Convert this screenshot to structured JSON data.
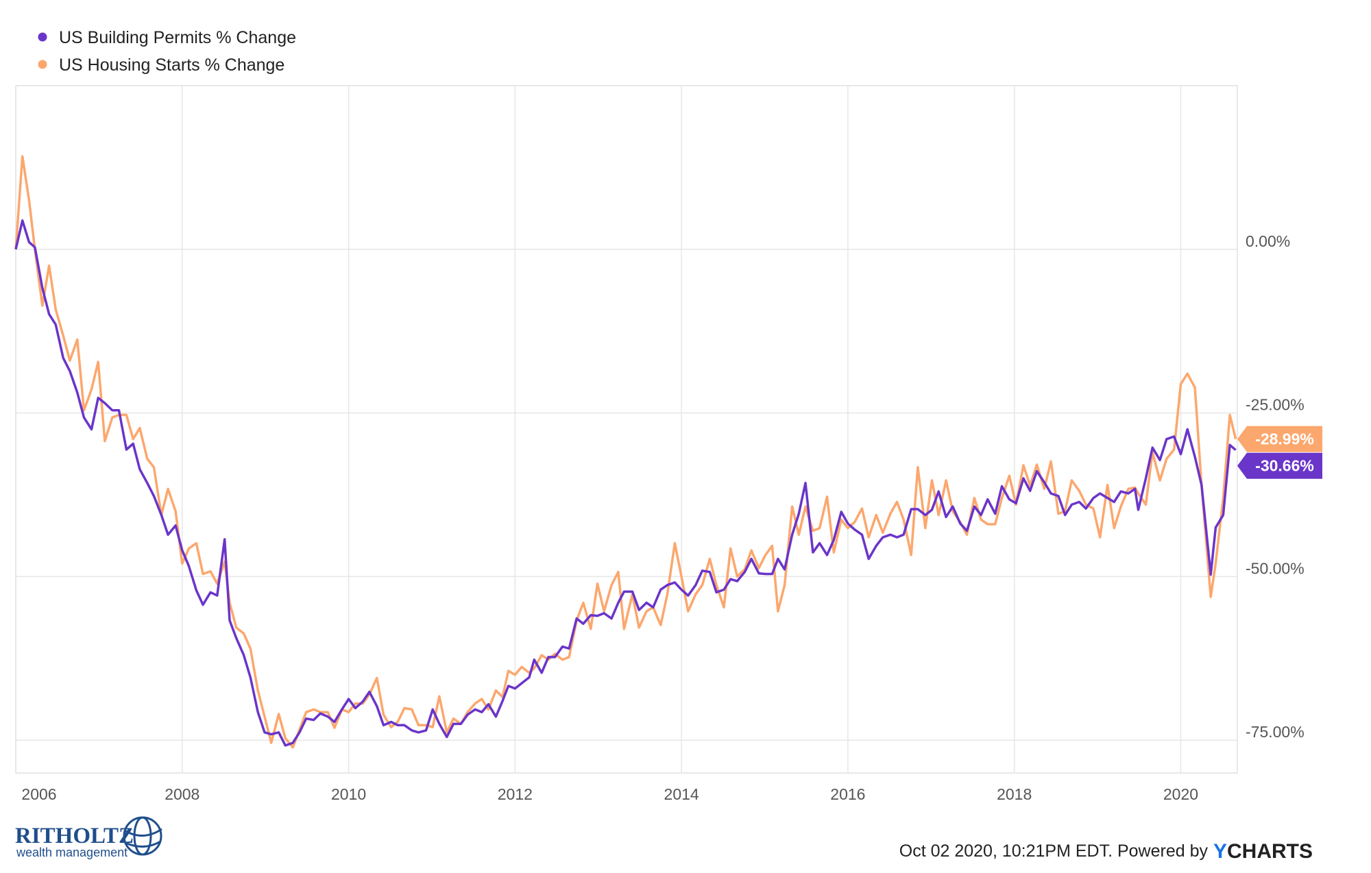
{
  "chart_data": {
    "type": "line",
    "x": [
      2006.0,
      2006.08,
      2006.16,
      2006.23,
      2006.32,
      2006.4,
      2006.48,
      2006.57,
      2006.65,
      2006.74,
      2006.82,
      2006.91,
      2006.99,
      2007.07,
      2007.16,
      2007.24,
      2007.33,
      2007.41,
      2007.49,
      2007.58,
      2007.66,
      2007.75,
      2007.83,
      2007.92,
      2008.0,
      2008.08,
      2008.17,
      2008.25,
      2008.34,
      2008.42,
      2008.51,
      2008.57,
      2008.65,
      2008.74,
      2008.82,
      2008.91,
      2008.99,
      2009.07,
      2009.16,
      2009.24,
      2009.33,
      2009.41,
      2009.49,
      2009.58,
      2009.66,
      2009.75,
      2009.83,
      2009.92,
      2010.0,
      2010.08,
      2010.17,
      2010.25,
      2010.34,
      2010.42,
      2010.51,
      2010.59,
      2010.67,
      2010.76,
      2010.84,
      2010.93,
      2011.01,
      2011.09,
      2011.18,
      2011.26,
      2011.35,
      2011.43,
      2011.52,
      2011.6,
      2011.68,
      2011.77,
      2011.85,
      2011.92,
      2012.0,
      2012.08,
      2012.17,
      2012.23,
      2012.32,
      2012.4,
      2012.48,
      2012.57,
      2012.65,
      2012.74,
      2012.82,
      2012.91,
      2012.99,
      2013.07,
      2013.16,
      2013.24,
      2013.31,
      2013.41,
      2013.49,
      2013.58,
      2013.66,
      2013.75,
      2013.83,
      2013.92,
      2014.0,
      2014.08,
      2014.17,
      2014.25,
      2014.34,
      2014.42,
      2014.51,
      2014.59,
      2014.67,
      2014.76,
      2014.84,
      2014.93,
      2015.01,
      2015.09,
      2015.16,
      2015.24,
      2015.33,
      2015.41,
      2015.49,
      2015.58,
      2015.66,
      2015.75,
      2015.83,
      2015.92,
      2016.0,
      2016.08,
      2016.17,
      2016.25,
      2016.34,
      2016.42,
      2016.51,
      2016.59,
      2016.67,
      2016.76,
      2016.84,
      2016.93,
      2017.01,
      2017.09,
      2017.18,
      2017.26,
      2017.35,
      2017.43,
      2017.52,
      2017.6,
      2017.68,
      2017.77,
      2017.85,
      2017.94,
      2018.02,
      2018.11,
      2018.19,
      2018.27,
      2018.36,
      2018.44,
      2018.53,
      2018.61,
      2018.69,
      2018.78,
      2018.86,
      2018.95,
      2019.03,
      2019.12,
      2019.2,
      2019.28,
      2019.37,
      2019.45,
      2019.49,
      2019.58,
      2019.66,
      2019.75,
      2019.83,
      2019.92,
      2020.0,
      2020.08,
      2020.17,
      2020.25,
      2020.36,
      2020.42,
      2020.51,
      2020.59,
      2020.66
    ],
    "series": [
      {
        "name": "US Building Permits % Change",
        "color": "#6a35c9",
        "end_label": "-30.66%",
        "values": [
          0,
          4.4,
          1.1,
          0.3,
          -5.9,
          -9.9,
          -11.5,
          -16.6,
          -18.6,
          -21.9,
          -25.7,
          -27.5,
          -22.7,
          -23.5,
          -24.6,
          -24.6,
          -30.6,
          -29.7,
          -33.6,
          -35.7,
          -37.7,
          -40.6,
          -43.6,
          -42.2,
          -46.0,
          -48.4,
          -52.1,
          -54.3,
          -52.4,
          -52.9,
          -44.3,
          -56.7,
          -59.4,
          -62.0,
          -65.4,
          -70.7,
          -73.8,
          -74.1,
          -73.8,
          -75.8,
          -75.4,
          -73.8,
          -71.7,
          -71.9,
          -70.9,
          -71.4,
          -72.2,
          -70.3,
          -68.7,
          -70.1,
          -69.1,
          -67.6,
          -69.8,
          -72.7,
          -72.2,
          -72.7,
          -72.7,
          -73.5,
          -73.8,
          -73.5,
          -70.3,
          -72.5,
          -74.5,
          -72.5,
          -72.5,
          -71.1,
          -70.3,
          -70.7,
          -69.5,
          -71.4,
          -69.0,
          -66.7,
          -67.1,
          -66.3,
          -65.4,
          -62.7,
          -64.7,
          -62.3,
          -62.3,
          -60.7,
          -61.0,
          -56.4,
          -57.2,
          -55.9,
          -56.0,
          -55.6,
          -56.4,
          -54.0,
          -52.3,
          -52.3,
          -55.1,
          -54.0,
          -54.7,
          -52.0,
          -51.3,
          -50.9,
          -52.0,
          -52.9,
          -51.3,
          -49.1,
          -49.3,
          -52.4,
          -52.0,
          -50.4,
          -50.7,
          -49.3,
          -47.3,
          -49.5,
          -49.6,
          -49.6,
          -47.3,
          -48.9,
          -43.6,
          -40.4,
          -35.7,
          -46.3,
          -44.9,
          -46.7,
          -44.4,
          -40.1,
          -41.9,
          -42.8,
          -43.6,
          -47.3,
          -45.3,
          -44.0,
          -43.6,
          -44.0,
          -43.6,
          -39.7,
          -39.7,
          -40.6,
          -39.8,
          -37.0,
          -40.9,
          -39.3,
          -41.9,
          -43.0,
          -39.3,
          -40.6,
          -38.2,
          -40.4,
          -36.2,
          -38.2,
          -38.8,
          -35.0,
          -36.9,
          -33.9,
          -35.6,
          -37.3,
          -37.7,
          -40.6,
          -39.0,
          -38.6,
          -39.6,
          -38.0,
          -37.3,
          -38.0,
          -38.6,
          -37.0,
          -37.3,
          -36.6,
          -39.8,
          -35.0,
          -30.3,
          -32.2,
          -29.0,
          -28.6,
          -31.3,
          -27.5,
          -31.7,
          -36.0,
          -49.7,
          -42.5,
          -40.6,
          -29.9,
          -30.66
        ]
      },
      {
        "name": "US Housing Starts % Change",
        "color": "#fca76d",
        "end_label": "-28.99%",
        "values": [
          0,
          14.2,
          7.5,
          0,
          -8.6,
          -2.5,
          -9.2,
          -13.2,
          -17.0,
          -13.8,
          -24.6,
          -21.4,
          -17.2,
          -29.3,
          -25.7,
          -25.3,
          -25.3,
          -29.0,
          -27.3,
          -32.0,
          -33.3,
          -40.6,
          -36.6,
          -40.0,
          -48.0,
          -45.7,
          -44.9,
          -49.6,
          -49.2,
          -51.1,
          -47.7,
          -54.0,
          -57.8,
          -58.7,
          -61.0,
          -67.4,
          -71.4,
          -75.4,
          -71.0,
          -74.7,
          -76.1,
          -73.4,
          -70.7,
          -70.3,
          -70.7,
          -70.7,
          -73.1,
          -70.3,
          -70.7,
          -69.4,
          -69.4,
          -68.0,
          -65.5,
          -71.1,
          -73.0,
          -72.2,
          -70.1,
          -70.3,
          -72.7,
          -72.7,
          -73.0,
          -68.3,
          -73.8,
          -71.7,
          -72.5,
          -70.7,
          -69.4,
          -68.7,
          -70.3,
          -67.4,
          -68.4,
          -64.4,
          -65.0,
          -63.8,
          -64.7,
          -64.0,
          -62.0,
          -62.7,
          -61.8,
          -62.7,
          -62.3,
          -56.7,
          -54.0,
          -58.0,
          -51.1,
          -55.3,
          -51.3,
          -49.3,
          -58.0,
          -52.7,
          -57.8,
          -55.3,
          -54.7,
          -57.4,
          -52.7,
          -44.9,
          -50.0,
          -55.3,
          -52.7,
          -51.3,
          -47.3,
          -51.3,
          -54.7,
          -45.7,
          -50.0,
          -48.9,
          -46.0,
          -48.7,
          -46.7,
          -45.3,
          -55.3,
          -51.3,
          -39.3,
          -43.6,
          -39.3,
          -43.0,
          -42.6,
          -37.8,
          -46.3,
          -41.3,
          -42.6,
          -41.7,
          -39.6,
          -44.0,
          -40.6,
          -43.3,
          -40.4,
          -38.6,
          -41.3,
          -46.7,
          -33.3,
          -42.6,
          -35.3,
          -40.6,
          -35.3,
          -40.0,
          -41.7,
          -43.6,
          -38.0,
          -41.3,
          -42.0,
          -42.0,
          -38.0,
          -34.6,
          -39.0,
          -33.0,
          -36.1,
          -32.9,
          -36.6,
          -32.4,
          -40.4,
          -40.0,
          -35.3,
          -36.9,
          -39.0,
          -39.6,
          -44.0,
          -36.0,
          -42.6,
          -39.3,
          -36.6,
          -36.4,
          -37.3,
          -39.0,
          -31.0,
          -35.3,
          -32.0,
          -30.6,
          -20.6,
          -19.0,
          -21.1,
          -36.0,
          -53.1,
          -48.0,
          -38.0,
          -25.3,
          -28.99
        ]
      }
    ],
    "xlim": [
      2006,
      2020.68
    ],
    "xticks": [
      2006,
      2008,
      2010,
      2012,
      2014,
      2016,
      2018,
      2020
    ],
    "ylim": [
      -80,
      25
    ],
    "yticks": [
      {
        "value": 0,
        "label": "0.00%"
      },
      {
        "value": -25,
        "label": "-25.00%"
      },
      {
        "value": -50,
        "label": "-50.00%"
      },
      {
        "value": -75,
        "label": "-75.00%"
      }
    ],
    "grid": true,
    "legend": "top-left"
  },
  "footer": {
    "timestamp": "Oct 02 2020, 10:21PM EDT. Powered by",
    "brand": [
      "Y",
      "CHARTS"
    ]
  },
  "logo": {
    "name": "RITHOLTZ",
    "tagline": "wealth management"
  }
}
